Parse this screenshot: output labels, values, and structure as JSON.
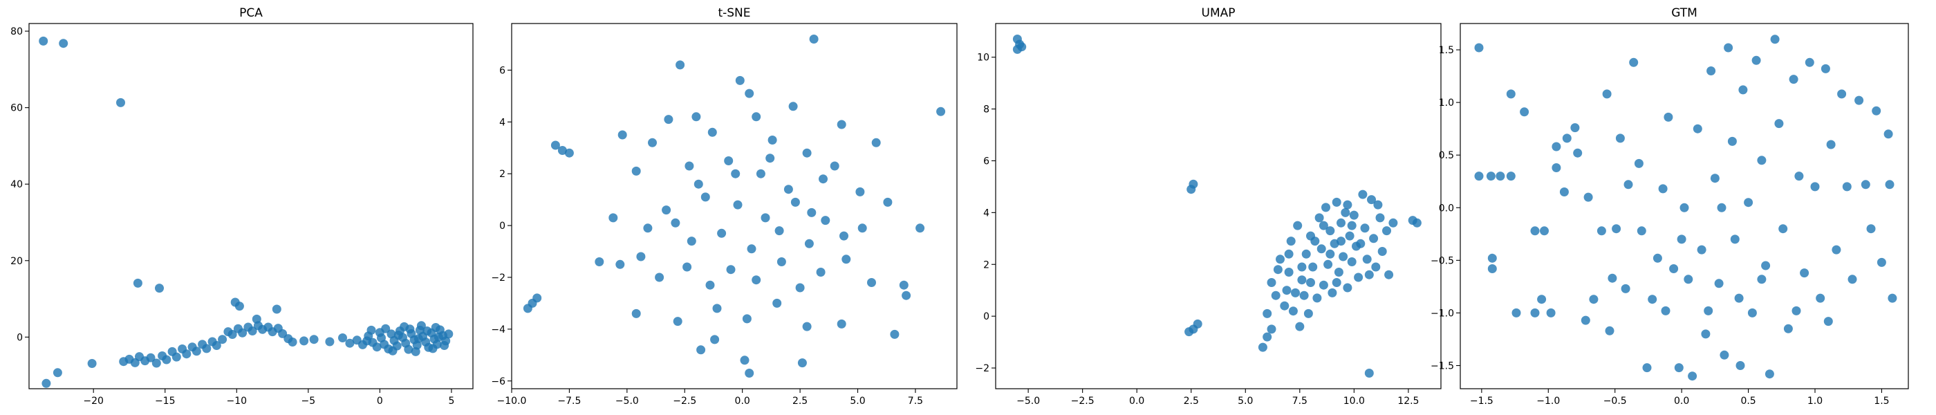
{
  "chart_data": [
    {
      "type": "scatter",
      "title": "PCA",
      "xlim": [
        -24.5,
        6.5
      ],
      "ylim": [
        -13.5,
        82
      ],
      "xticks": [
        -20,
        -15,
        -10,
        -5,
        0,
        5
      ],
      "yticks": [
        0,
        20,
        40,
        60,
        80
      ],
      "color": "#1f77b4",
      "points": [
        [
          -23.5,
          77.4
        ],
        [
          -22.1,
          76.8
        ],
        [
          -18.1,
          61.3
        ],
        [
          -16.9,
          14.1
        ],
        [
          -15.4,
          12.8
        ],
        [
          -23.3,
          -12.1
        ],
        [
          -22.5,
          -9.3
        ],
        [
          -20.1,
          -6.9
        ],
        [
          -10.1,
          9.1
        ],
        [
          -9.8,
          8.1
        ],
        [
          -7.2,
          7.3
        ],
        [
          -8.6,
          4.7
        ],
        [
          -17.9,
          -6.4
        ],
        [
          -17.5,
          -5.8
        ],
        [
          -17.1,
          -6.7
        ],
        [
          -16.8,
          -5.1
        ],
        [
          -16.4,
          -6.2
        ],
        [
          -16.0,
          -5.4
        ],
        [
          -15.6,
          -6.8
        ],
        [
          -15.2,
          -4.9
        ],
        [
          -14.9,
          -5.9
        ],
        [
          -14.5,
          -3.8
        ],
        [
          -14.2,
          -5.2
        ],
        [
          -13.8,
          -3.1
        ],
        [
          -13.5,
          -4.4
        ],
        [
          -13.1,
          -2.6
        ],
        [
          -12.8,
          -3.7
        ],
        [
          -12.4,
          -1.9
        ],
        [
          -12.1,
          -3.0
        ],
        [
          -11.7,
          -1.2
        ],
        [
          -11.4,
          -2.2
        ],
        [
          -11.0,
          -0.6
        ],
        [
          -10.6,
          1.4
        ],
        [
          -10.3,
          0.7
        ],
        [
          -9.9,
          2.2
        ],
        [
          -9.6,
          1.1
        ],
        [
          -9.2,
          2.6
        ],
        [
          -8.9,
          1.6
        ],
        [
          -8.5,
          3.0
        ],
        [
          -8.2,
          2.0
        ],
        [
          -7.8,
          2.6
        ],
        [
          -7.5,
          1.4
        ],
        [
          -7.1,
          2.3
        ],
        [
          -6.8,
          0.9
        ],
        [
          -6.4,
          -0.4
        ],
        [
          -6.1,
          -1.3
        ],
        [
          -5.3,
          -1.0
        ],
        [
          -4.6,
          -0.6
        ],
        [
          -3.5,
          -1.2
        ],
        [
          -2.6,
          -0.2
        ],
        [
          -2.1,
          -1.6
        ],
        [
          -1.6,
          -0.8
        ],
        [
          -1.2,
          -2.0
        ],
        [
          -0.8,
          0.3
        ],
        [
          -0.5,
          -1.4
        ],
        [
          -0.2,
          -2.6
        ],
        [
          0.1,
          -0.2
        ],
        [
          0.3,
          -1.9
        ],
        [
          0.6,
          -3.1
        ],
        [
          0.8,
          0.8
        ],
        [
          1.0,
          -0.9
        ],
        [
          1.2,
          -2.3
        ],
        [
          1.4,
          1.6
        ],
        [
          1.6,
          -0.1
        ],
        [
          1.8,
          -1.6
        ],
        [
          2.0,
          -3.2
        ],
        [
          2.2,
          0.9
        ],
        [
          2.4,
          -0.7
        ],
        [
          2.6,
          -2.1
        ],
        [
          2.8,
          1.8
        ],
        [
          3.0,
          0.2
        ],
        [
          3.2,
          -1.3
        ],
        [
          3.4,
          -2.7
        ],
        [
          3.6,
          1.1
        ],
        [
          3.8,
          -0.5
        ],
        [
          4.0,
          -1.9
        ],
        [
          4.2,
          1.9
        ],
        [
          4.4,
          0.4
        ],
        [
          4.6,
          -1.0
        ],
        [
          4.8,
          0.8
        ],
        [
          0.4,
          2.2
        ],
        [
          1.7,
          2.7
        ],
        [
          2.9,
          3.0
        ],
        [
          3.9,
          2.5
        ],
        [
          -0.6,
          1.8
        ],
        [
          0.9,
          -3.6
        ],
        [
          2.5,
          -3.8
        ],
        [
          3.7,
          -3.0
        ],
        [
          4.5,
          -2.2
        ],
        [
          1.3,
          0.5
        ],
        [
          2.7,
          -0.4
        ],
        [
          3.3,
          1.6
        ],
        [
          -0.9,
          -1.0
        ],
        [
          0.0,
          1.2
        ],
        [
          2.1,
          2.1
        ],
        [
          4.1,
          0.0
        ]
      ]
    },
    {
      "type": "scatter",
      "title": "t-SNE",
      "xlim": [
        -10,
        9.3
      ],
      "ylim": [
        -6.3,
        7.8
      ],
      "xticks": [
        -10.0,
        -7.5,
        -5.0,
        -2.5,
        0.0,
        2.5,
        5.0,
        7.5
      ],
      "yticks": [
        -6,
        -4,
        -2,
        0,
        2,
        4,
        6
      ],
      "color": "#1f77b4",
      "points": [
        [
          3.1,
          7.2
        ],
        [
          -2.7,
          6.2
        ],
        [
          8.6,
          4.4
        ],
        [
          -0.1,
          5.6
        ],
        [
          0.3,
          5.1
        ],
        [
          0.6,
          4.2
        ],
        [
          -2.0,
          4.2
        ],
        [
          -3.2,
          4.1
        ],
        [
          2.2,
          4.6
        ],
        [
          4.3,
          3.9
        ],
        [
          -8.1,
          3.1
        ],
        [
          -7.8,
          2.9
        ],
        [
          -7.5,
          2.8
        ],
        [
          -5.2,
          3.5
        ],
        [
          -3.9,
          3.2
        ],
        [
          -1.3,
          3.6
        ],
        [
          1.3,
          3.3
        ],
        [
          2.8,
          2.8
        ],
        [
          5.8,
          3.2
        ],
        [
          -4.6,
          2.1
        ],
        [
          -2.3,
          2.3
        ],
        [
          -0.6,
          2.5
        ],
        [
          0.8,
          2.0
        ],
        [
          2.0,
          1.4
        ],
        [
          3.5,
          1.8
        ],
        [
          5.1,
          1.3
        ],
        [
          6.3,
          0.9
        ],
        [
          7.7,
          -0.1
        ],
        [
          -5.6,
          0.3
        ],
        [
          -4.1,
          -0.1
        ],
        [
          -3.3,
          0.6
        ],
        [
          -2.2,
          -0.6
        ],
        [
          -1.6,
          1.1
        ],
        [
          -0.9,
          -0.3
        ],
        [
          -0.2,
          0.8
        ],
        [
          0.4,
          -0.9
        ],
        [
          1.0,
          0.3
        ],
        [
          1.6,
          -0.2
        ],
        [
          2.3,
          0.9
        ],
        [
          2.9,
          -0.7
        ],
        [
          3.6,
          0.2
        ],
        [
          4.4,
          -0.4
        ],
        [
          5.2,
          -0.1
        ],
        [
          -4.4,
          -1.2
        ],
        [
          -3.6,
          -2.0
        ],
        [
          -2.4,
          -1.6
        ],
        [
          -1.4,
          -2.3
        ],
        [
          -0.5,
          -1.7
        ],
        [
          0.6,
          -2.1
        ],
        [
          1.7,
          -1.4
        ],
        [
          2.5,
          -2.4
        ],
        [
          3.4,
          -1.8
        ],
        [
          4.5,
          -1.3
        ],
        [
          5.6,
          -2.2
        ],
        [
          7.0,
          -2.3
        ],
        [
          7.1,
          -2.7
        ],
        [
          -5.3,
          -1.5
        ],
        [
          -6.2,
          -1.4
        ],
        [
          -4.6,
          -3.4
        ],
        [
          -2.8,
          -3.7
        ],
        [
          -1.1,
          -3.2
        ],
        [
          0.2,
          -3.6
        ],
        [
          1.5,
          -3.0
        ],
        [
          2.8,
          -3.9
        ],
        [
          4.3,
          -3.8
        ],
        [
          6.6,
          -4.2
        ],
        [
          -1.8,
          -4.8
        ],
        [
          -1.2,
          -4.4
        ],
        [
          0.1,
          -5.2
        ],
        [
          0.3,
          -5.7
        ],
        [
          2.6,
          -5.3
        ],
        [
          -9.3,
          -3.2
        ],
        [
          -9.1,
          -3.0
        ],
        [
          -8.9,
          -2.8
        ],
        [
          3.0,
          0.5
        ],
        [
          -0.3,
          2.0
        ],
        [
          1.2,
          2.6
        ],
        [
          -2.9,
          0.1
        ],
        [
          4.0,
          2.3
        ],
        [
          -1.9,
          1.6
        ]
      ]
    },
    {
      "type": "scatter",
      "title": "UMAP",
      "xlim": [
        -6.5,
        14.0
      ],
      "ylim": [
        -2.8,
        11.3
      ],
      "xticks": [
        -5.0,
        -2.5,
        0.0,
        2.5,
        5.0,
        7.5,
        10.0,
        12.5
      ],
      "yticks": [
        -2,
        0,
        2,
        4,
        6,
        8,
        10
      ],
      "color": "#1f77b4",
      "points": [
        [
          -5.5,
          10.7
        ],
        [
          -5.4,
          10.5
        ],
        [
          -5.3,
          10.4
        ],
        [
          -5.5,
          10.3
        ],
        [
          2.6,
          5.1
        ],
        [
          2.5,
          4.9
        ],
        [
          2.4,
          -0.6
        ],
        [
          2.6,
          -0.5
        ],
        [
          2.8,
          -0.3
        ],
        [
          5.8,
          -1.2
        ],
        [
          6.0,
          -0.8
        ],
        [
          6.2,
          -0.5
        ],
        [
          10.7,
          -2.2
        ],
        [
          12.9,
          3.6
        ],
        [
          12.7,
          3.7
        ],
        [
          6.2,
          1.3
        ],
        [
          6.6,
          2.2
        ],
        [
          6.8,
          0.4
        ],
        [
          7.0,
          1.7
        ],
        [
          7.1,
          2.9
        ],
        [
          7.3,
          0.9
        ],
        [
          7.4,
          3.5
        ],
        [
          7.5,
          -0.4
        ],
        [
          7.6,
          1.4
        ],
        [
          7.8,
          2.4
        ],
        [
          7.9,
          0.1
        ],
        [
          8.0,
          3.1
        ],
        [
          8.1,
          1.9
        ],
        [
          8.3,
          0.7
        ],
        [
          8.4,
          3.8
        ],
        [
          8.5,
          2.6
        ],
        [
          8.6,
          1.2
        ],
        [
          8.7,
          4.2
        ],
        [
          8.8,
          2.0
        ],
        [
          8.9,
          3.3
        ],
        [
          9.0,
          0.9
        ],
        [
          9.1,
          2.8
        ],
        [
          9.2,
          4.4
        ],
        [
          9.3,
          1.7
        ],
        [
          9.4,
          3.6
        ],
        [
          9.5,
          2.3
        ],
        [
          9.6,
          4.0
        ],
        [
          9.7,
          1.1
        ],
        [
          9.8,
          3.1
        ],
        [
          9.9,
          2.1
        ],
        [
          10.0,
          3.9
        ],
        [
          10.1,
          2.7
        ],
        [
          10.2,
          1.5
        ],
        [
          10.4,
          4.7
        ],
        [
          10.5,
          3.4
        ],
        [
          10.6,
          2.2
        ],
        [
          10.8,
          4.5
        ],
        [
          10.9,
          3.0
        ],
        [
          11.0,
          1.9
        ],
        [
          11.2,
          3.8
        ],
        [
          11.3,
          2.5
        ],
        [
          11.5,
          3.3
        ],
        [
          11.6,
          1.6
        ],
        [
          11.8,
          3.6
        ],
        [
          6.4,
          0.8
        ],
        [
          6.9,
          1.0
        ],
        [
          7.2,
          0.2
        ],
        [
          7.7,
          0.8
        ],
        [
          8.2,
          2.9
        ],
        [
          8.9,
          2.4
        ],
        [
          9.4,
          2.9
        ],
        [
          9.9,
          3.5
        ],
        [
          7.0,
          2.4
        ],
        [
          8.6,
          3.5
        ],
        [
          10.3,
          2.8
        ],
        [
          6.5,
          1.8
        ],
        [
          7.6,
          1.9
        ],
        [
          8.0,
          1.3
        ],
        [
          9.2,
          1.3
        ],
        [
          10.7,
          1.6
        ],
        [
          11.1,
          4.3
        ],
        [
          9.7,
          4.3
        ],
        [
          6.0,
          0.1
        ]
      ]
    },
    {
      "type": "scatter",
      "title": "GTM",
      "xlim": [
        -1.66,
        1.7
      ],
      "ylim": [
        -1.72,
        1.75
      ],
      "xticks": [
        -1.5,
        -1.0,
        -0.5,
        0.0,
        0.5,
        1.0,
        1.5
      ],
      "yticks": [
        -1.5,
        -1.0,
        -0.5,
        0.0,
        0.5,
        1.0,
        1.5
      ],
      "color": "#1f77b4",
      "points": [
        [
          -1.52,
          1.52
        ],
        [
          -1.52,
          0.3
        ],
        [
          -1.43,
          0.3
        ],
        [
          -1.36,
          0.3
        ],
        [
          -1.28,
          0.3
        ],
        [
          -1.28,
          1.08
        ],
        [
          -1.18,
          0.91
        ],
        [
          -1.42,
          -0.48
        ],
        [
          -1.42,
          -0.58
        ],
        [
          -1.1,
          -0.22
        ],
        [
          -1.03,
          -0.22
        ],
        [
          -1.24,
          -1.0
        ],
        [
          -1.1,
          -1.0
        ],
        [
          -1.05,
          -0.87
        ],
        [
          -0.98,
          -1.0
        ],
        [
          -0.94,
          0.58
        ],
        [
          -0.94,
          0.38
        ],
        [
          -0.88,
          0.15
        ],
        [
          -0.86,
          0.66
        ],
        [
          -0.8,
          0.76
        ],
        [
          -0.78,
          0.52
        ],
        [
          -0.72,
          -1.07
        ],
        [
          -0.66,
          -0.87
        ],
        [
          -0.6,
          -0.22
        ],
        [
          -0.56,
          1.08
        ],
        [
          -0.54,
          -1.17
        ],
        [
          -0.52,
          -0.67
        ],
        [
          -0.49,
          -0.2
        ],
        [
          -0.46,
          0.66
        ],
        [
          -0.42,
          -0.77
        ],
        [
          -0.36,
          1.38
        ],
        [
          -0.32,
          0.42
        ],
        [
          -0.3,
          -0.22
        ],
        [
          -0.26,
          -1.52
        ],
        [
          -0.22,
          -0.87
        ],
        [
          -0.18,
          -0.48
        ],
        [
          -0.14,
          0.18
        ],
        [
          -0.1,
          0.86
        ],
        [
          -0.06,
          -0.58
        ],
        [
          -0.02,
          -1.52
        ],
        [
          0.02,
          0.0
        ],
        [
          0.05,
          -0.68
        ],
        [
          0.08,
          -1.6
        ],
        [
          0.12,
          0.75
        ],
        [
          0.15,
          -0.4
        ],
        [
          0.18,
          -1.2
        ],
        [
          0.22,
          1.3
        ],
        [
          0.25,
          0.28
        ],
        [
          0.28,
          -0.72
        ],
        [
          0.32,
          -1.4
        ],
        [
          0.35,
          1.52
        ],
        [
          0.38,
          0.63
        ],
        [
          0.4,
          -0.3
        ],
        [
          0.43,
          -0.86
        ],
        [
          0.46,
          1.12
        ],
        [
          0.5,
          0.05
        ],
        [
          0.53,
          -1.0
        ],
        [
          0.56,
          1.4
        ],
        [
          0.6,
          0.45
        ],
        [
          0.63,
          -0.55
        ],
        [
          0.66,
          -1.58
        ],
        [
          0.7,
          1.6
        ],
        [
          0.73,
          0.8
        ],
        [
          0.76,
          -0.2
        ],
        [
          0.8,
          -1.15
        ],
        [
          0.84,
          1.22
        ],
        [
          0.88,
          0.3
        ],
        [
          0.92,
          -0.62
        ],
        [
          0.96,
          1.38
        ],
        [
          1.0,
          0.2
        ],
        [
          1.04,
          -0.86
        ],
        [
          1.08,
          1.32
        ],
        [
          1.12,
          0.6
        ],
        [
          1.16,
          -0.4
        ],
        [
          1.2,
          1.08
        ],
        [
          1.24,
          0.2
        ],
        [
          1.28,
          -0.68
        ],
        [
          1.33,
          1.02
        ],
        [
          1.38,
          0.22
        ],
        [
          1.42,
          -0.2
        ],
        [
          1.46,
          0.92
        ],
        [
          1.5,
          -0.52
        ],
        [
          1.55,
          0.7
        ],
        [
          1.58,
          -0.86
        ],
        [
          1.56,
          0.22
        ],
        [
          -0.4,
          0.22
        ],
        [
          0.6,
          -0.68
        ],
        [
          0.2,
          -0.98
        ],
        [
          -0.12,
          -0.98
        ],
        [
          0.86,
          -0.98
        ],
        [
          1.1,
          -1.08
        ],
        [
          0.44,
          -1.5
        ],
        [
          -0.7,
          0.1
        ],
        [
          0.0,
          -0.3
        ],
        [
          0.3,
          0.0
        ]
      ]
    }
  ]
}
